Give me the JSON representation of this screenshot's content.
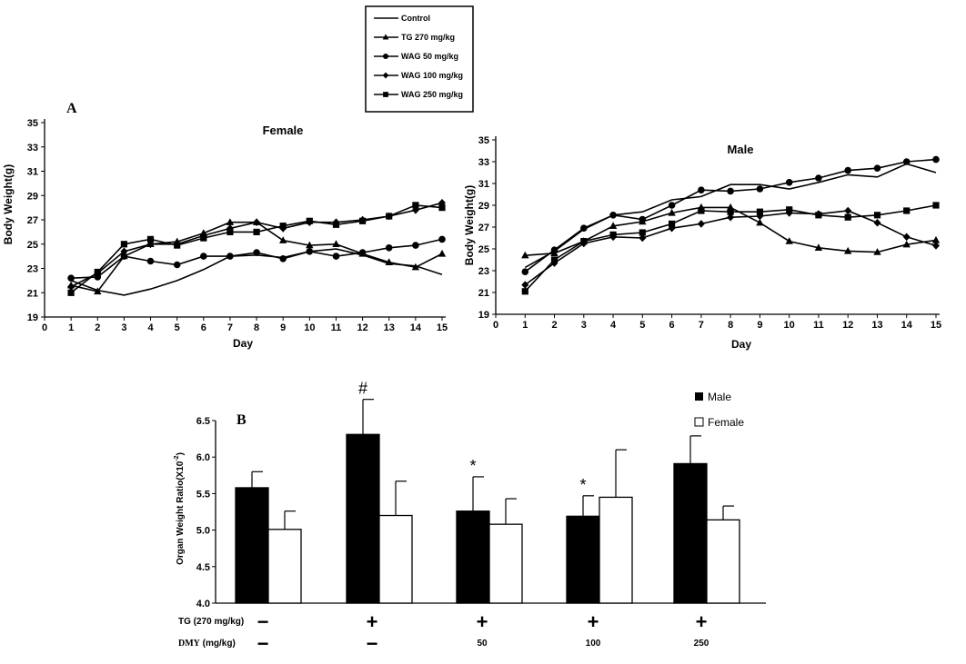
{
  "legend_lines": {
    "items": [
      {
        "label": "Control",
        "marker": "none"
      },
      {
        "label": "TG 270 mg/kg",
        "marker": "triangle"
      },
      {
        "label": "WAG 50 mg/kg",
        "marker": "circle"
      },
      {
        "label": "WAG 100 mg/kg",
        "marker": "diamond"
      },
      {
        "label": "WAG 250 mg/kg",
        "marker": "square"
      }
    ]
  },
  "panel_a_label": "A",
  "panel_b_label": "B",
  "conditions": {
    "tg_label": "TG (270 mg/kg)",
    "dmy_label_prefix": "DMY",
    "dmy_label_unit": " (mg/kg)",
    "tg": [
      "−",
      "+",
      "+",
      "+",
      "+"
    ],
    "dmy": [
      "−",
      "−",
      "50",
      "100",
      "250"
    ]
  },
  "chart_data": [
    {
      "type": "line",
      "title": "Female",
      "xlabel": "Day",
      "ylabel": "Body Weight(g)",
      "xlim": [
        0,
        15
      ],
      "ylim": [
        19,
        35
      ],
      "xticks": [
        0,
        1,
        2,
        3,
        4,
        5,
        6,
        7,
        8,
        9,
        10,
        11,
        12,
        13,
        14,
        15
      ],
      "yticks": [
        19,
        21,
        23,
        25,
        27,
        29,
        31,
        33,
        35
      ],
      "x": [
        1,
        2,
        3,
        4,
        5,
        6,
        7,
        8,
        9,
        10,
        11,
        12,
        13,
        14,
        15
      ],
      "grid": false,
      "series": [
        {
          "name": "Control",
          "marker": "none",
          "values": [
            22.0,
            21.2,
            20.8,
            21.3,
            22.0,
            22.9,
            24.0,
            24.1,
            23.9,
            24.4,
            24.6,
            24.1,
            23.4,
            23.2,
            22.5
          ]
        },
        {
          "name": "TG 270 mg/kg",
          "marker": "triangle",
          "values": [
            21.6,
            21.1,
            24.0,
            25.0,
            25.2,
            25.9,
            26.8,
            26.8,
            25.3,
            24.9,
            25.0,
            24.2,
            23.5,
            23.1,
            24.2
          ]
        },
        {
          "name": "WAG 50 mg/kg",
          "marker": "circle",
          "values": [
            22.2,
            22.3,
            24.0,
            23.6,
            23.3,
            24.0,
            24.0,
            24.3,
            23.8,
            24.4,
            24.0,
            24.3,
            24.7,
            24.9,
            25.4
          ]
        },
        {
          "name": "WAG 100 mg/kg",
          "marker": "diamond",
          "values": [
            21.5,
            22.6,
            24.4,
            25.0,
            25.0,
            25.7,
            26.3,
            26.8,
            26.3,
            26.8,
            26.8,
            27.0,
            27.3,
            27.8,
            28.4
          ]
        },
        {
          "name": "WAG 250 mg/kg",
          "marker": "square",
          "values": [
            21.0,
            22.7,
            25.0,
            25.4,
            24.9,
            25.5,
            26.0,
            26.0,
            26.5,
            26.9,
            26.6,
            26.9,
            27.3,
            28.2,
            28.0
          ]
        }
      ]
    },
    {
      "type": "line",
      "title": "Male",
      "xlabel": "Day",
      "ylabel": "Body Weight(g)",
      "xlim": [
        0,
        15
      ],
      "ylim": [
        19,
        35
      ],
      "xticks": [
        0,
        1,
        2,
        3,
        4,
        5,
        6,
        7,
        8,
        9,
        10,
        11,
        12,
        13,
        14,
        15
      ],
      "yticks": [
        19,
        21,
        23,
        25,
        27,
        29,
        31,
        33,
        35
      ],
      "x": [
        1,
        2,
        3,
        4,
        5,
        6,
        7,
        8,
        9,
        10,
        11,
        12,
        13,
        14,
        15
      ],
      "grid": false,
      "series": [
        {
          "name": "Control",
          "marker": "none",
          "values": [
            23.3,
            24.8,
            26.8,
            28.1,
            28.4,
            29.5,
            29.8,
            30.9,
            30.9,
            30.5,
            31.1,
            31.8,
            31.6,
            32.8,
            32.0
          ]
        },
        {
          "name": "TG 270 mg/kg",
          "marker": "triangle",
          "values": [
            24.4,
            24.6,
            25.7,
            27.1,
            27.5,
            28.3,
            28.8,
            28.8,
            27.4,
            25.7,
            25.1,
            24.8,
            24.7,
            25.4,
            25.8
          ]
        },
        {
          "name": "WAG 50 mg/kg",
          "marker": "circle",
          "values": [
            22.9,
            24.9,
            26.9,
            28.1,
            27.7,
            29.0,
            30.4,
            30.3,
            30.5,
            31.1,
            31.5,
            32.2,
            32.4,
            33.0,
            33.2
          ]
        },
        {
          "name": "WAG 100 mg/kg",
          "marker": "diamond",
          "values": [
            21.7,
            23.7,
            25.5,
            26.1,
            26.0,
            26.9,
            27.3,
            27.9,
            28.0,
            28.3,
            28.2,
            28.5,
            27.4,
            26.1,
            25.3
          ]
        },
        {
          "name": "WAG 250 mg/kg",
          "marker": "square",
          "values": [
            21.1,
            24.0,
            25.7,
            26.3,
            26.5,
            27.3,
            28.5,
            28.4,
            28.4,
            28.6,
            28.1,
            27.9,
            28.1,
            28.5,
            29.0
          ]
        }
      ]
    },
    {
      "type": "bar",
      "ylabel": "Organ Weight Ratio(X10",
      "ylabel_exp": "-2",
      "ylabel_close": ")",
      "ylim": [
        4.0,
        6.5
      ],
      "yticks": [
        "4.0",
        "4.5",
        "5.0",
        "5.5",
        "6.0",
        "6.5"
      ],
      "legend_position": "top-right",
      "grid": false,
      "series": [
        {
          "name": "Male",
          "color": "#000000",
          "values": [
            5.58,
            6.31,
            5.26,
            5.19,
            5.91
          ],
          "errors": [
            0.22,
            0.48,
            0.47,
            0.28,
            0.38
          ]
        },
        {
          "name": "Female",
          "color": "#ffffff",
          "values": [
            5.01,
            5.2,
            5.08,
            5.45,
            5.14
          ],
          "errors": [
            0.25,
            0.47,
            0.35,
            0.65,
            0.19
          ]
        }
      ],
      "annotations": [
        {
          "group": 1,
          "series": "Male",
          "text": "#"
        },
        {
          "group": 2,
          "series": "Male",
          "text": "*"
        },
        {
          "group": 3,
          "series": "Male",
          "text": "*"
        }
      ]
    }
  ]
}
